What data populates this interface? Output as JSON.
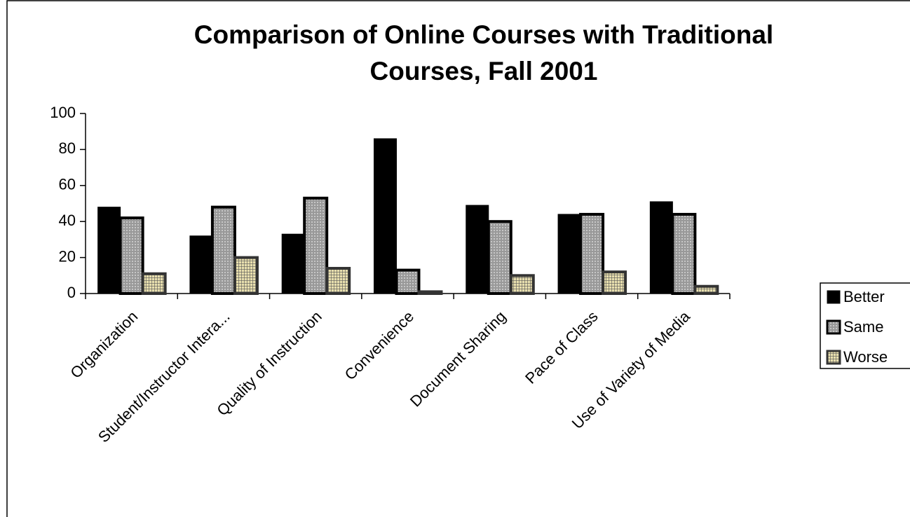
{
  "chart_data": {
    "type": "bar",
    "title": "Comparison of Online Courses with Traditional Courses, Fall 2001",
    "categories": [
      "Organization",
      "Student/Instructor Intera...",
      "Quality of Instruction",
      "Convenience",
      "Document Sharing",
      "Pace of Class",
      "Use of Variety of Media"
    ],
    "series": [
      {
        "name": "Better",
        "color": "#000000",
        "values": [
          48,
          32,
          33,
          86,
          49,
          44,
          51
        ]
      },
      {
        "name": "Same",
        "color": "#999999",
        "values": [
          42,
          48,
          53,
          13,
          40,
          44,
          44
        ]
      },
      {
        "name": "Worse",
        "color": "#e8dfae",
        "values": [
          11,
          20,
          14,
          1,
          10,
          12,
          4
        ]
      }
    ],
    "ylim": [
      0,
      100
    ],
    "yticks": [
      0,
      20,
      40,
      60,
      80,
      100
    ],
    "legend": "right"
  }
}
